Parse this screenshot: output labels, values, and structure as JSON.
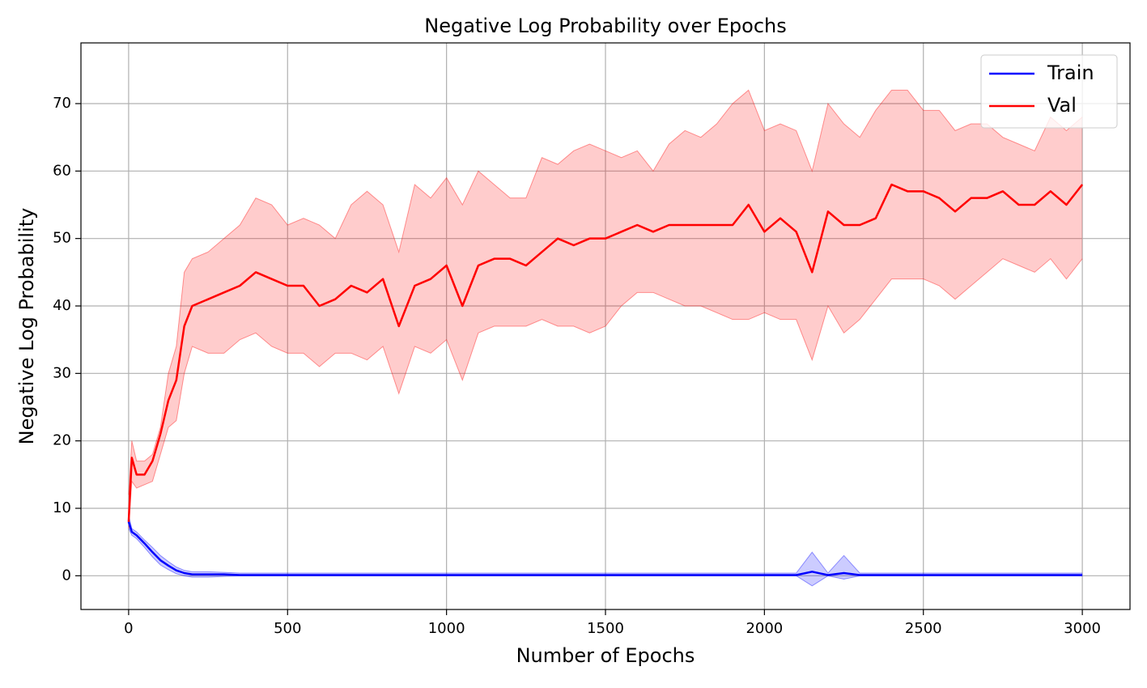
{
  "chart_data": {
    "type": "line",
    "title": "Negative Log Probability over Epochs",
    "x_label": "Number of Epochs",
    "y_label": "Negative Log Probability",
    "xlim": [
      -150,
      3150
    ],
    "ylim": [
      -5,
      79
    ],
    "xticks": [
      0,
      500,
      1000,
      1500,
      2000,
      2500,
      3000
    ],
    "yticks": [
      0,
      10,
      20,
      30,
      40,
      50,
      60,
      70
    ],
    "grid": true,
    "legend": "upper right",
    "x": [
      0,
      10,
      25,
      50,
      75,
      100,
      125,
      150,
      175,
      200,
      250,
      300,
      350,
      400,
      450,
      500,
      550,
      600,
      650,
      700,
      750,
      800,
      850,
      900,
      950,
      1000,
      1050,
      1100,
      1150,
      1200,
      1250,
      1300,
      1350,
      1400,
      1450,
      1500,
      1550,
      1600,
      1650,
      1700,
      1750,
      1800,
      1850,
      1900,
      1950,
      2000,
      2050,
      2100,
      2150,
      2200,
      2250,
      2300,
      2350,
      2400,
      2450,
      2500,
      2550,
      2600,
      2650,
      2700,
      2750,
      2800,
      2850,
      2900,
      2950,
      3000
    ],
    "series": [
      {
        "name": "Train",
        "color": "#0000ff",
        "values": [
          8,
          6.5,
          6,
          4.8,
          3.5,
          2.3,
          1.5,
          0.8,
          0.4,
          0.2,
          0.2,
          0.2,
          0.1,
          0.1,
          0.1,
          0.1,
          0.1,
          0.1,
          0.1,
          0.1,
          0.1,
          0.1,
          0.1,
          0.1,
          0.1,
          0.1,
          0.1,
          0.1,
          0.1,
          0.1,
          0.1,
          0.1,
          0.1,
          0.1,
          0.1,
          0.1,
          0.1,
          0.1,
          0.1,
          0.1,
          0.1,
          0.1,
          0.1,
          0.1,
          0.1,
          0.1,
          0.1,
          0.1,
          0.6,
          0.1,
          0.4,
          0.1,
          0.1,
          0.1,
          0.1,
          0.1,
          0.1,
          0.1,
          0.1,
          0.1,
          0.1,
          0.1,
          0.1,
          0.1,
          0.1,
          0.1
        ],
        "lower": [
          7,
          6,
          5.5,
          4.2,
          2.8,
          1.6,
          0.9,
          0.3,
          0,
          -0.2,
          -0.2,
          -0.1,
          0,
          0,
          0,
          0,
          0,
          0,
          0,
          0,
          0,
          0,
          0,
          0,
          0,
          0,
          0,
          0,
          0,
          0,
          0,
          0,
          0,
          0,
          0,
          0,
          0,
          0,
          0,
          0,
          0,
          0,
          0,
          0,
          0,
          0,
          0,
          0,
          -1.5,
          0,
          -0.5,
          0,
          0,
          0,
          0,
          0,
          0,
          0,
          0,
          0,
          0,
          0,
          0,
          0,
          0,
          0
        ],
        "upper": [
          9,
          7,
          6.5,
          5.3,
          4.2,
          3,
          2.1,
          1.3,
          0.8,
          0.6,
          0.6,
          0.5,
          0.4,
          0.4,
          0.4,
          0.4,
          0.4,
          0.4,
          0.4,
          0.4,
          0.4,
          0.4,
          0.4,
          0.4,
          0.4,
          0.4,
          0.4,
          0.4,
          0.4,
          0.4,
          0.4,
          0.4,
          0.4,
          0.4,
          0.4,
          0.4,
          0.4,
          0.4,
          0.4,
          0.4,
          0.4,
          0.4,
          0.4,
          0.4,
          0.4,
          0.4,
          0.4,
          0.4,
          3.5,
          0.4,
          3,
          0.4,
          0.4,
          0.4,
          0.4,
          0.4,
          0.4,
          0.4,
          0.4,
          0.4,
          0.4,
          0.4,
          0.4,
          0.4,
          0.4,
          0.4
        ]
      },
      {
        "name": "Val",
        "color": "#ff0000",
        "values": [
          8,
          17.5,
          15,
          15,
          17,
          21,
          26,
          29,
          37,
          40,
          41,
          42,
          43,
          45,
          44,
          43,
          43,
          40,
          41,
          43,
          42,
          44,
          37,
          43,
          44,
          46,
          40,
          46,
          47,
          47,
          46,
          48,
          50,
          49,
          50,
          50,
          51,
          52,
          51,
          52,
          52,
          52,
          52,
          52,
          55,
          51,
          53,
          51,
          45,
          54,
          52,
          52,
          53,
          58,
          57,
          57,
          56,
          54,
          56,
          56,
          57,
          55,
          55,
          57,
          55,
          58
        ],
        "lower": [
          7,
          14,
          13,
          13.5,
          14,
          18,
          22,
          23,
          30,
          34,
          33,
          33,
          35,
          36,
          34,
          33,
          33,
          31,
          33,
          33,
          32,
          34,
          27,
          34,
          33,
          35,
          29,
          36,
          37,
          37,
          37,
          38,
          37,
          37,
          36,
          37,
          40,
          42,
          42,
          41,
          40,
          40,
          39,
          38,
          38,
          39,
          38,
          38,
          32,
          40,
          36,
          38,
          41,
          44,
          44,
          44,
          43,
          41,
          43,
          45,
          47,
          46,
          45,
          47,
          44,
          47
        ],
        "upper": [
          12,
          20,
          17,
          17,
          18,
          22,
          30,
          34,
          45,
          47,
          48,
          50,
          52,
          56,
          55,
          52,
          53,
          52,
          50,
          55,
          57,
          55,
          48,
          58,
          56,
          59,
          55,
          60,
          58,
          56,
          56,
          62,
          61,
          63,
          64,
          63,
          62,
          63,
          60,
          64,
          66,
          65,
          67,
          70,
          72,
          66,
          67,
          66,
          60,
          70,
          67,
          65,
          69,
          72,
          72,
          69,
          69,
          66,
          67,
          67,
          65,
          64,
          63,
          68,
          66,
          68
        ]
      }
    ]
  }
}
